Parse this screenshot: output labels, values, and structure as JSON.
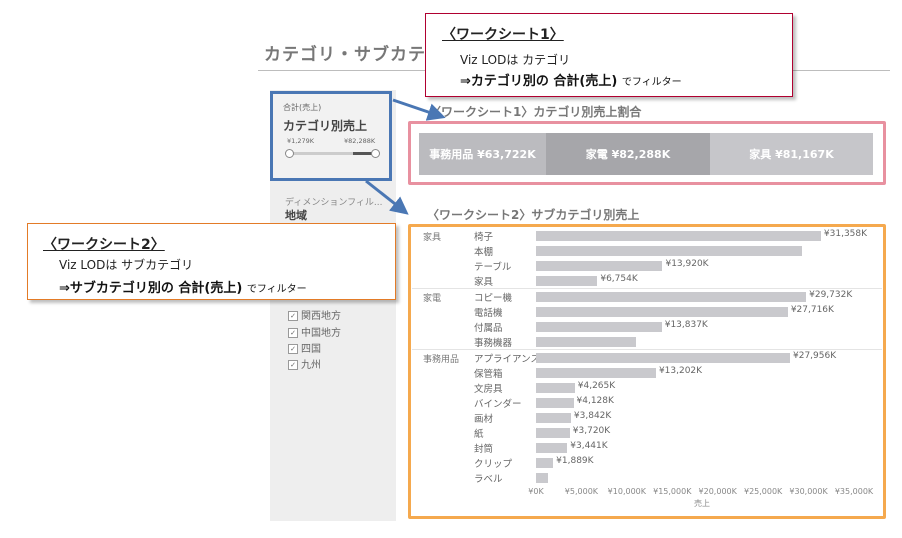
{
  "page_title": "カテゴリ・サブカテ",
  "filter": {
    "small_label": "合計(売上)",
    "title": "カテゴリ別売上",
    "min_label": "¥1,279K",
    "max_label": "¥82,288K"
  },
  "dimension_filter": {
    "label": "ディメンションフィル...",
    "title": "地域",
    "regions": [
      "関西地方",
      "中国地方",
      "四国",
      "九州"
    ],
    "checked_mark": "✓"
  },
  "callout1": {
    "heading": "〈ワークシート1〉",
    "line1": "Viz LODは カテゴリ",
    "line2_main": "⇒カテゴリ別の 合計(売上)",
    "line2_small": "でフィルター"
  },
  "callout2": {
    "heading": "〈ワークシート2〉",
    "line1": "Viz LODは サブカテゴリ",
    "line2_main": "⇒サブカテゴリ別の 合計(売上)",
    "line2_small": "でフィルター"
  },
  "colors": {
    "callout1_border": "#b00030",
    "callout2_border": "#e37b27",
    "ws1_frame": "#e891a0",
    "ws2_frame": "#f5a94e",
    "filter_frame": "#4a77b4",
    "bar": "#c9c9cd"
  },
  "chart_data": [
    {
      "type": "bar",
      "title": "〈ワークシート1〉カテゴリ別売上割合",
      "orientation": "horizontal-stacked",
      "categories": [
        "事務用品",
        "家電",
        "家具"
      ],
      "values": [
        63722,
        82288,
        81167
      ],
      "value_labels": [
        "事務用品 ¥63,722K",
        "家電 ¥82,288K",
        "家具 ¥81,167K"
      ],
      "colors": [
        "#bbbbbf",
        "#a6a6aa",
        "#c6c6ca"
      ],
      "unit": "K"
    },
    {
      "type": "bar",
      "title": "〈ワークシート2〉サブカテゴリ別売上",
      "orientation": "horizontal",
      "xlabel": "売上",
      "xlim": [
        0,
        35000
      ],
      "ticks": [
        0,
        5000,
        10000,
        15000,
        20000,
        25000,
        30000,
        35000
      ],
      "tick_labels": [
        "¥0K",
        "¥5,000K",
        "¥10,000K",
        "¥15,000K",
        "¥20,000K",
        "¥25,000K",
        "¥30,000K",
        "¥35,000K"
      ],
      "groups": [
        {
          "category": "家具",
          "items": [
            {
              "name": "椅子",
              "value": 31358,
              "label": "¥31,358K"
            },
            {
              "name": "本棚",
              "value": 29300,
              "label": ""
            },
            {
              "name": "テーブル",
              "value": 13920,
              "label": "¥13,920K"
            },
            {
              "name": "家具",
              "value": 6754,
              "label": "¥6,754K"
            }
          ]
        },
        {
          "category": "家電",
          "items": [
            {
              "name": "コピー機",
              "value": 29732,
              "label": "¥29,732K"
            },
            {
              "name": "電話機",
              "value": 27716,
              "label": "¥27,716K"
            },
            {
              "name": "付属品",
              "value": 13837,
              "label": "¥13,837K"
            },
            {
              "name": "事務機器",
              "value": 11000,
              "label": ""
            }
          ]
        },
        {
          "category": "事務用品",
          "items": [
            {
              "name": "アプライアンス",
              "value": 27956,
              "label": "¥27,956K"
            },
            {
              "name": "保管箱",
              "value": 13202,
              "label": "¥13,202K"
            },
            {
              "name": "文房具",
              "value": 4265,
              "label": "¥4,265K"
            },
            {
              "name": "バインダー",
              "value": 4128,
              "label": "¥4,128K"
            },
            {
              "name": "画材",
              "value": 3842,
              "label": "¥3,842K"
            },
            {
              "name": "紙",
              "value": 3720,
              "label": "¥3,720K"
            },
            {
              "name": "封筒",
              "value": 3441,
              "label": "¥3,441K"
            },
            {
              "name": "クリップ",
              "value": 1889,
              "label": "¥1,889K"
            },
            {
              "name": "ラベル",
              "value": 1279,
              "label": ""
            }
          ]
        }
      ]
    }
  ]
}
